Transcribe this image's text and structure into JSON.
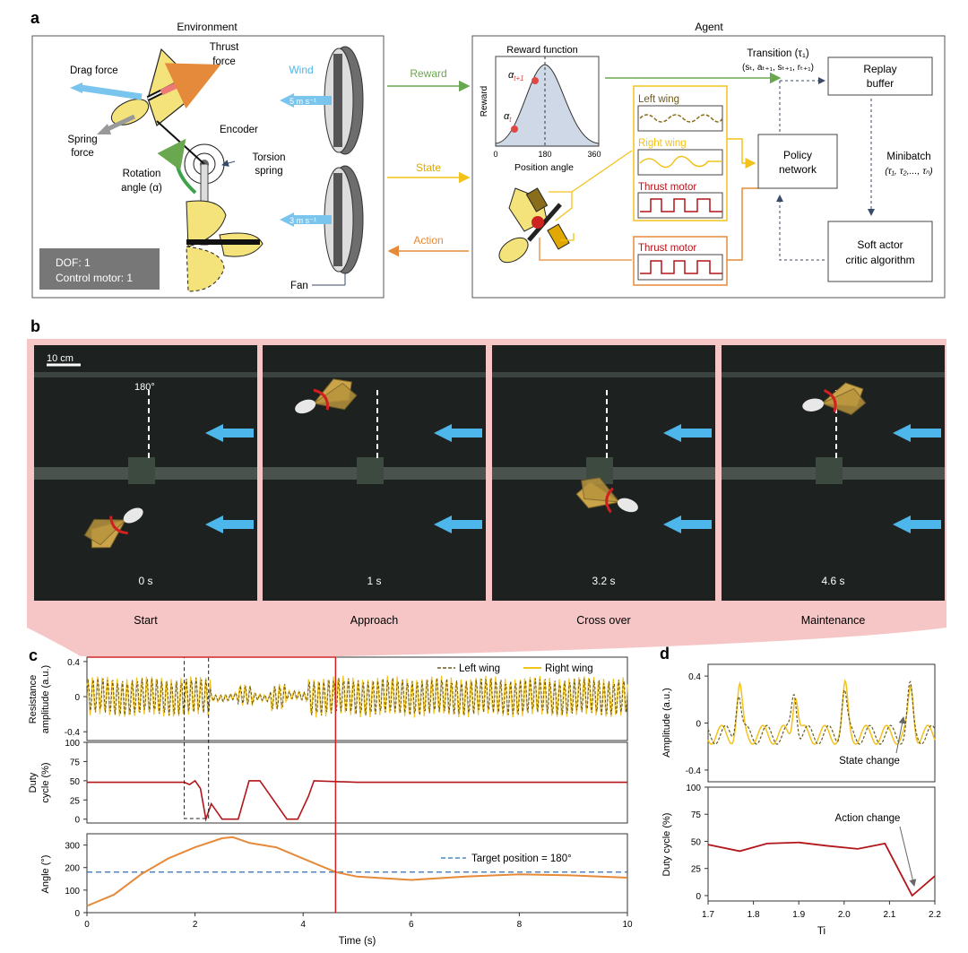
{
  "panel_letters": {
    "a": "a",
    "b": "b",
    "c": "c",
    "d": "d"
  },
  "environment": {
    "title": "Environment",
    "thrust_force_line1": "Thrust",
    "thrust_force_line2": "force",
    "drag_force": "Drag force",
    "spring_force_line1": "Spring",
    "spring_force_line2": "force",
    "encoder": "Encoder",
    "torsion_spring_line1": "Torsion",
    "torsion_spring_line2": "spring",
    "rotation_angle_line1": "Rotation",
    "rotation_angle_line2": "angle (α)",
    "wind": "Wind",
    "wind_speed_top": "5 m s⁻¹",
    "wind_speed_bottom": "3 m s⁻¹",
    "fan": "Fan",
    "dof": "DOF: 1",
    "control_motor": "Control motor: 1"
  },
  "flows": {
    "reward": "Reward",
    "state": "State",
    "action": "Action"
  },
  "agent": {
    "title": "Agent",
    "reward_function": "Reward function",
    "reward_axis": "Reward",
    "position_angle": "Position angle",
    "ticks": [
      "0",
      "180",
      "360"
    ],
    "alpha_t1": "α",
    "alpha_t1_sub": "t+1",
    "alpha_t": "α",
    "alpha_t_sub": "t",
    "transition_title": "Transition (τ₁)",
    "transition_tuple": "(sₜ, aₜ₊₁, sₜ₊₁, rₜ₊₁)",
    "replay_buffer_line1": "Replay",
    "replay_buffer_line2": "buffer",
    "left_wing": "Left wing",
    "right_wing": "Right wing",
    "thrust_motor_state": "Thrust motor",
    "thrust_motor_action": "Thrust motor",
    "policy_network_line1": "Policy",
    "policy_network_line2": "network",
    "minibatch": "Minibatch",
    "minibatch_tuple": "(τ₁, τ₂,..., τₙ)",
    "sac_line1": "Soft actor",
    "sac_line2": "critic algorithm"
  },
  "panel_b": {
    "scale_bar": "10 cm",
    "angle_label": "180°",
    "frames": [
      {
        "time": "0 s",
        "caption": "Start"
      },
      {
        "time": "1 s",
        "caption": "Approach"
      },
      {
        "time": "3.2 s",
        "caption": "Cross over"
      },
      {
        "time": "4.6 s",
        "caption": "Maintenance"
      }
    ]
  },
  "panel_c": {
    "legend_left": "Left wing",
    "legend_right": "Right wing",
    "ylabel_1a": "Resistance",
    "ylabel_1b": "amplitude (a.u.)",
    "ylabel_2a": "Duty",
    "ylabel_2b": "cycle (%)",
    "ylabel_3": "Angle (°)",
    "xlabel": "Time (s)",
    "target_label": "Target position = 180°",
    "y1_ticks": [
      "0.4",
      "0",
      "-0.4"
    ],
    "y2_ticks": [
      "100",
      "75",
      "50",
      "25",
      "0"
    ],
    "y3_ticks": [
      "300",
      "200",
      "100",
      "0"
    ],
    "x_ticks": [
      "0",
      "2",
      "4",
      "6",
      "8",
      "10"
    ]
  },
  "panel_d": {
    "ylabel_1": "Amplitude (a.u.)",
    "ylabel_2": "Duty cycle (%)",
    "xlabel": "Ti",
    "state_change": "State change",
    "action_change": "Action change",
    "y1_ticks": [
      "0.4",
      "0",
      "-0.4"
    ],
    "y2_ticks": [
      "100",
      "75",
      "50",
      "25",
      "0"
    ],
    "x_ticks": [
      "1.7",
      "1.8",
      "1.9",
      "2.0",
      "2.1",
      "2.2"
    ]
  },
  "colors": {
    "left_wing": "#6b5a1e",
    "right_wing": "#f2c21b",
    "duty": "#b3151b",
    "angle": "#e58a3a",
    "target": "#2f6db5",
    "reward_arrow": "#6aa84f",
    "state_arrow": "#f2c21b",
    "action_arrow": "#e58a3a",
    "pink_bg": "#f6c6c6",
    "wind_arrow": "#4db6ea"
  },
  "chart_data": [
    {
      "type": "line",
      "panel": "c-angle",
      "x": [
        0,
        0.5,
        1.0,
        1.5,
        2.0,
        2.5,
        2.7,
        3.0,
        3.5,
        4.0,
        4.6,
        5.0,
        6.0,
        7.0,
        8.0,
        9.0,
        10.0
      ],
      "series": [
        {
          "name": "Angle",
          "values": [
            30,
            80,
            170,
            240,
            290,
            330,
            335,
            310,
            290,
            240,
            180,
            160,
            145,
            160,
            170,
            165,
            155
          ]
        }
      ],
      "target": 180,
      "xlim": [
        0,
        10
      ],
      "ylim": [
        0,
        350
      ],
      "xlabel": "Time (s)",
      "ylabel": "Angle (°)"
    },
    {
      "type": "line",
      "panel": "c-duty",
      "x": [
        0,
        1.8,
        1.9,
        2.0,
        2.1,
        2.2,
        2.3,
        2.5,
        2.8,
        3.0,
        3.2,
        3.7,
        3.9,
        4.1,
        4.2,
        5,
        6,
        7,
        8,
        9,
        10
      ],
      "series": [
        {
          "name": "Duty cycle",
          "values": [
            48,
            48,
            45,
            50,
            40,
            0,
            20,
            0,
            0,
            50,
            50,
            0,
            0,
            30,
            50,
            48,
            48,
            48,
            48,
            48,
            48
          ]
        }
      ],
      "xlim": [
        0,
        10
      ],
      "ylim": [
        0,
        100
      ],
      "xlabel": "Time (s)",
      "ylabel": "Duty cycle (%)"
    },
    {
      "type": "line",
      "panel": "d-duty",
      "x": [
        1.7,
        1.77,
        1.83,
        1.9,
        1.96,
        2.03,
        2.09,
        2.15,
        2.2
      ],
      "series": [
        {
          "name": "Duty cycle",
          "values": [
            47,
            41,
            48,
            49,
            46,
            43,
            48,
            0,
            18
          ]
        }
      ],
      "xlim": [
        1.7,
        2.2
      ],
      "ylim": [
        0,
        100
      ],
      "xlabel": "Ti",
      "ylabel": "Duty cycle (%)"
    }
  ]
}
